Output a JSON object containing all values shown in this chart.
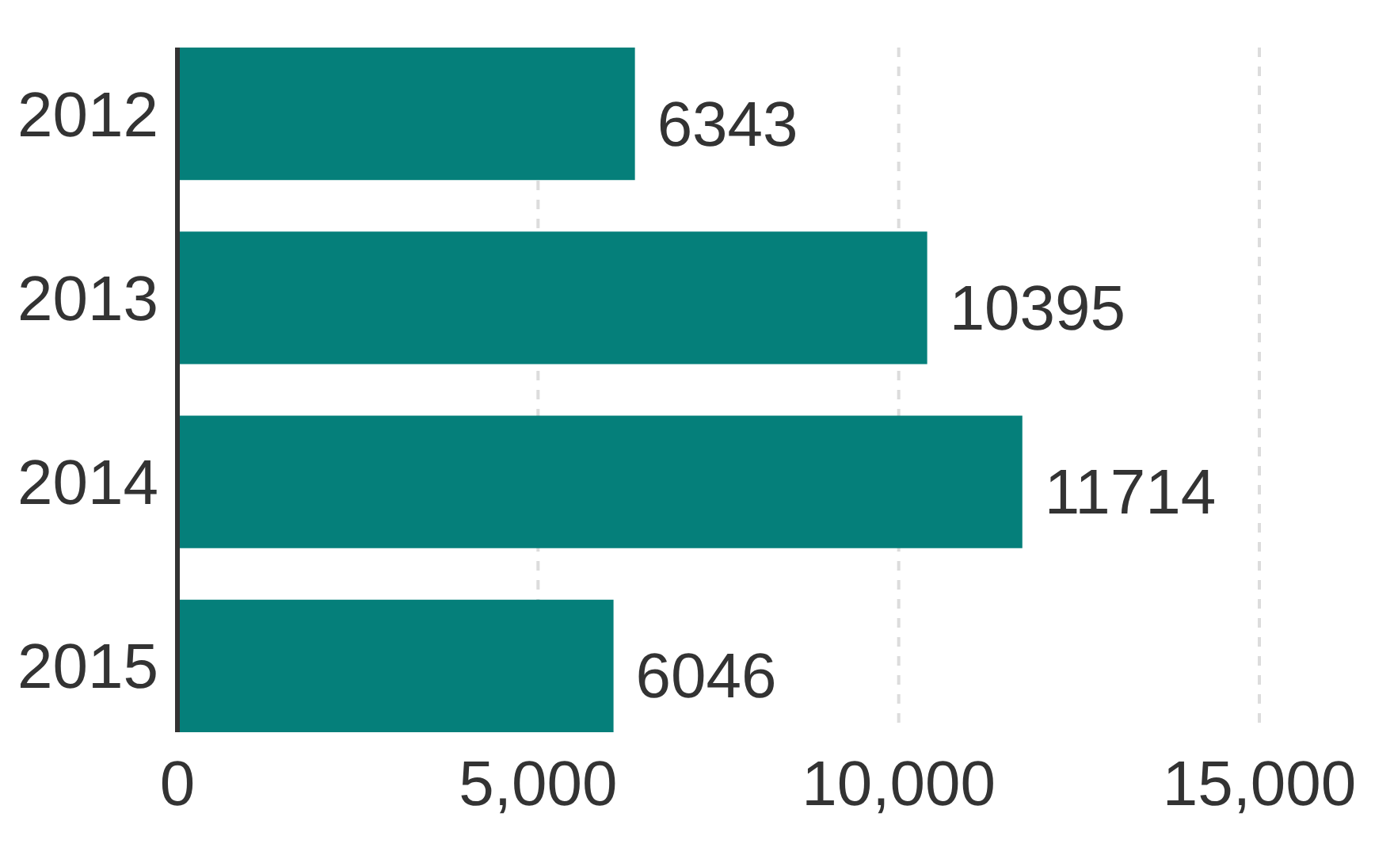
{
  "chart_data": {
    "type": "bar",
    "orientation": "horizontal",
    "categories": [
      "2012",
      "2013",
      "2014",
      "2015"
    ],
    "values": [
      6343,
      10395,
      11714,
      6046
    ],
    "color": "#057f7a",
    "xlim": [
      0,
      15000
    ],
    "xticks": [
      0,
      {
        "value": 5000,
        "label": "5,000"
      },
      {
        "value": 10000,
        "label": "10,000"
      },
      {
        "value": 15000,
        "label": "15,000"
      }
    ],
    "grid": "x",
    "data_labels": true
  }
}
